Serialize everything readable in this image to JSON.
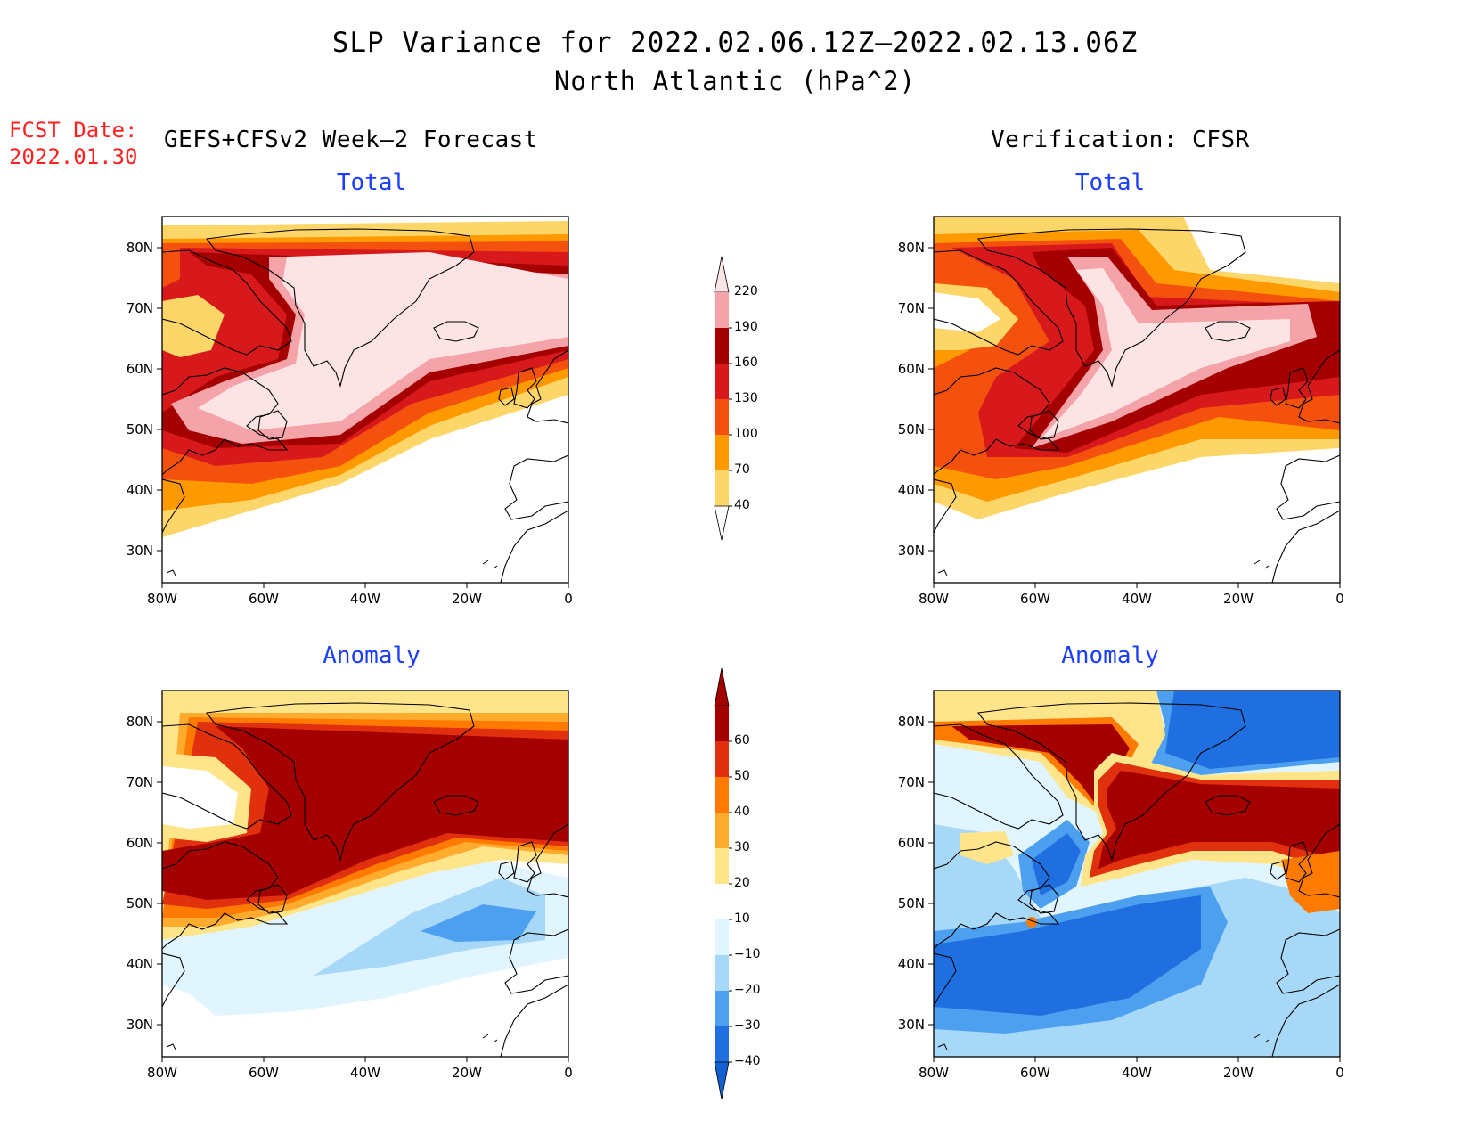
{
  "header": {
    "title_line1": "SLP Variance for 2022.02.06.12Z–2022.02.13.06Z",
    "title_line2": "North Atlantic (hPa^2)",
    "fcst_label": "FCST Date:",
    "fcst_date": "2022.01.30",
    "left_heading": "GEFS+CFSv2 Week–2 Forecast",
    "right_heading": "Verification: CFSR"
  },
  "panels": {
    "top_left_title": "Total",
    "top_right_title": "Total",
    "bottom_left_title": "Anomaly",
    "bottom_right_title": "Anomaly"
  },
  "axes": {
    "lat_labels": [
      "80N",
      "70N",
      "60N",
      "50N",
      "40N",
      "30N"
    ],
    "lon_labels": [
      "80W",
      "60W",
      "40W",
      "20W",
      "0"
    ]
  },
  "colorbar_total": {
    "labels": [
      "220",
      "190",
      "160",
      "130",
      "100",
      "70",
      "40"
    ],
    "colors": [
      "#f4a3a8",
      "#a50000",
      "#d7191c",
      "#f4510f",
      "#ff9900",
      "#fcd668"
    ],
    "top_color": "#fce4e4"
  },
  "colorbar_anomaly": {
    "labels": [
      "60",
      "50",
      "40",
      "30",
      "20",
      "10",
      "−10",
      "−20",
      "−30",
      "−40"
    ],
    "colors": [
      "#a50000",
      "#e0300e",
      "#ff7a00",
      "#ffab2e",
      "#ffe58a",
      "#ffffff",
      "#e0f5ff",
      "#a8d8f8",
      "#4da0f0",
      "#1f6fe0"
    ],
    "top_color": "#a50000",
    "bottom_color": "#1560d0"
  }
}
